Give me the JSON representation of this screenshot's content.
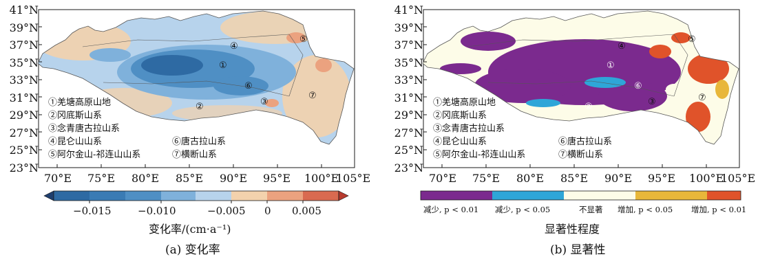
{
  "latitude_labels": [
    "41°N",
    "39°N",
    "37°N",
    "35°N",
    "33°N",
    "31°N",
    "29°N",
    "27°N",
    "25°N",
    "23°N"
  ],
  "longitude_labels": [
    "70°E",
    "75°E",
    "80°E",
    "85°E",
    "90°E",
    "95°E",
    "100°E",
    "105°E"
  ],
  "legend": {
    "items": [
      "①羌塘高原山地",
      "②冈底斯山系",
      "③念青唐古拉山系",
      "④昆仑山山系",
      "⑤阿尔金山-祁连山山系",
      "⑥唐古拉山系",
      "⑦横断山系"
    ]
  },
  "region_markers": [
    "①",
    "②",
    "③",
    "④",
    "⑤",
    "⑥",
    "⑦"
  ],
  "panel_a": {
    "colorbar_ticks": [
      "−0.015",
      "−0.010",
      "−0.005",
      "0",
      "0.005"
    ],
    "colorbar_title": "变化率/(cm·a⁻¹)",
    "colorbar_colors": [
      "#1f3f6e",
      "#2e6aa3",
      "#4f8fc4",
      "#7fb1db",
      "#b7d3ec",
      "#f3d2ad",
      "#eba27f",
      "#d96a50",
      "#b73a2e"
    ],
    "caption": "(a) 变化率"
  },
  "panel_b": {
    "categories": [
      "减少, p < 0.01",
      "减少, p < 0.05",
      "不显著",
      "增加, p < 0.05",
      "增加, p < 0.01"
    ],
    "category_colors": [
      "#7b2a8e",
      "#2ea6d8",
      "#fdfce8",
      "#e8b73a",
      "#e0532a"
    ],
    "colorbar_title": "显著性程度",
    "caption": "(b) 显著性"
  },
  "colors": {
    "frame": "#1a1a1a",
    "plateau_outline": "#555555"
  }
}
